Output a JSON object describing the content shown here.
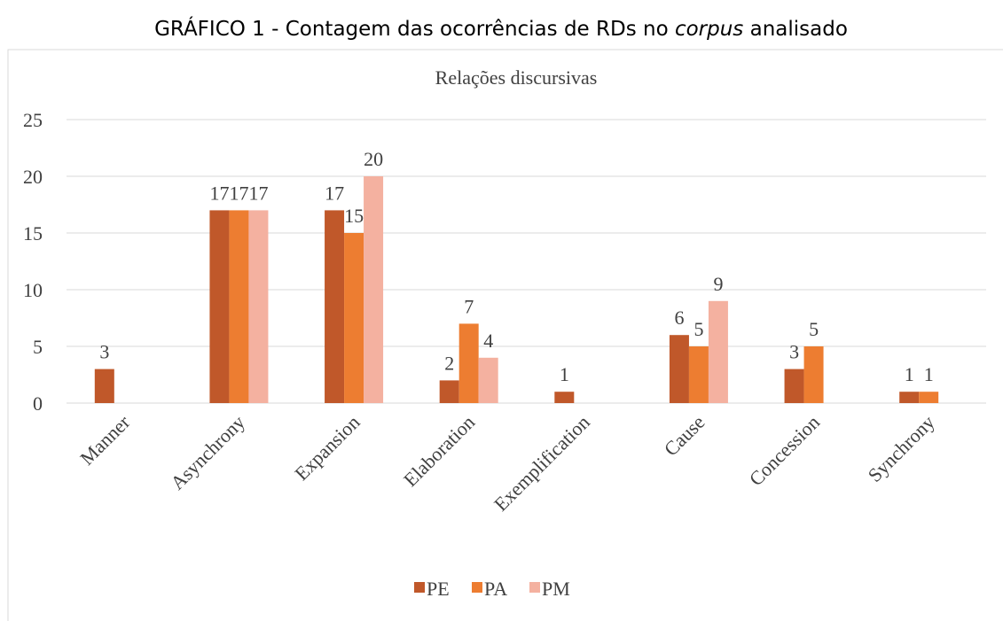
{
  "caption": [
    "GRÁFICO 1 - Contagem das ocorrências de RDs no",
    "corpus",
    "analisado"
  ],
  "chart_data": {
    "type": "bar",
    "title": "Relações discursivas",
    "categories": [
      "Manner",
      "Asynchrony",
      "Expansion",
      "Elaboration",
      "Exemplification",
      "Cause",
      "Concession",
      "Synchrony"
    ],
    "series": [
      {
        "name": "PE",
        "color": "#c0582a",
        "values": [
          3,
          17,
          17,
          2,
          1,
          6,
          3,
          1
        ]
      },
      {
        "name": "PA",
        "color": "#ed7d31",
        "values": [
          null,
          17,
          15,
          7,
          null,
          5,
          5,
          1
        ]
      },
      {
        "name": "PM",
        "color": "#f4b1a0",
        "values": [
          null,
          17,
          20,
          4,
          null,
          9,
          null,
          null
        ]
      }
    ],
    "ylim": [
      0,
      25
    ],
    "yticks": [
      0,
      5,
      10,
      15,
      20,
      25
    ],
    "grid": true,
    "legend": "bottom"
  }
}
